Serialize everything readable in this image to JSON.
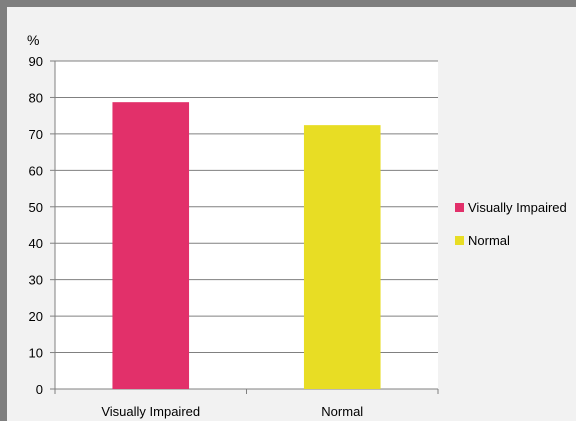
{
  "chart_data": {
    "type": "bar",
    "title": "",
    "ylabel": "%",
    "xlabel": "",
    "categories": [
      "Visually Impaired",
      "Normal"
    ],
    "series": [
      {
        "name": "Visually Impaired",
        "color": "#e2306a",
        "values": [
          78.7,
          null
        ]
      },
      {
        "name": "Normal",
        "color": "#e8dd24",
        "values": [
          null,
          72.4
        ]
      }
    ],
    "ylim": [
      0,
      90
    ],
    "yticks": [
      0,
      10,
      20,
      30,
      40,
      50,
      60,
      70,
      80,
      90
    ],
    "grid": true,
    "legend_position": "right"
  }
}
